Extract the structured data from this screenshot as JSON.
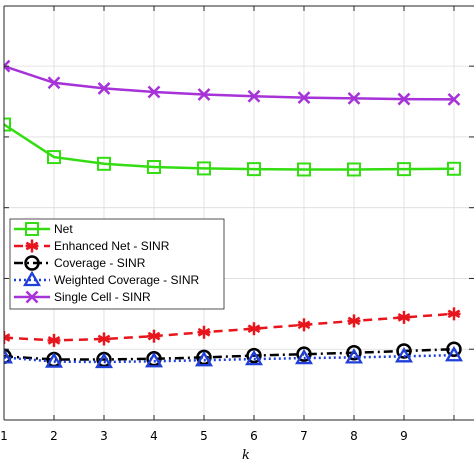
{
  "chart_data": {
    "type": "line",
    "xlabel": "k",
    "ylabel": "",
    "x": [
      1,
      2,
      3,
      4,
      5,
      6,
      7,
      8,
      9,
      10
    ],
    "xticks": [
      "1",
      "2",
      "3",
      "4",
      "5",
      "6",
      "7",
      "8",
      "9"
    ],
    "xlim": [
      1,
      10
    ],
    "ylim": [
      0,
      1.17
    ],
    "yticks": [
      0.2,
      0.4,
      0.6,
      0.8,
      1.0
    ],
    "grid": true,
    "legend_position": "center-left",
    "series": [
      {
        "name": "Net",
        "color": "#33dd11",
        "linestyle": "solid",
        "marker": "square",
        "values": [
          0.835,
          0.743,
          0.724,
          0.715,
          0.711,
          0.709,
          0.708,
          0.708,
          0.709,
          0.71
        ]
      },
      {
        "name": "Enhanced Net - SINR",
        "color": "#e8151c",
        "linestyle": "dashed",
        "marker": "asterisk",
        "values": [
          0.233,
          0.225,
          0.229,
          0.237,
          0.248,
          0.258,
          0.269,
          0.28,
          0.29,
          0.3
        ]
      },
      {
        "name": "Coverage - SINR",
        "color": "#000000",
        "linestyle": "dashdot",
        "marker": "circle",
        "values": [
          0.18,
          0.171,
          0.171,
          0.173,
          0.177,
          0.182,
          0.186,
          0.19,
          0.195,
          0.2
        ]
      },
      {
        "name": "Weighted Coverage - SINR",
        "color": "#1f3fd8",
        "linestyle": "dotted",
        "marker": "triangle",
        "values": [
          0.177,
          0.165,
          0.164,
          0.166,
          0.169,
          0.172,
          0.175,
          0.177,
          0.18,
          0.183
        ]
      },
      {
        "name": "Single Cell - SINR",
        "color": "#a632d8",
        "linestyle": "solid",
        "marker": "x",
        "values": [
          1.0,
          0.953,
          0.937,
          0.927,
          0.92,
          0.915,
          0.911,
          0.909,
          0.907,
          0.906
        ]
      }
    ]
  }
}
